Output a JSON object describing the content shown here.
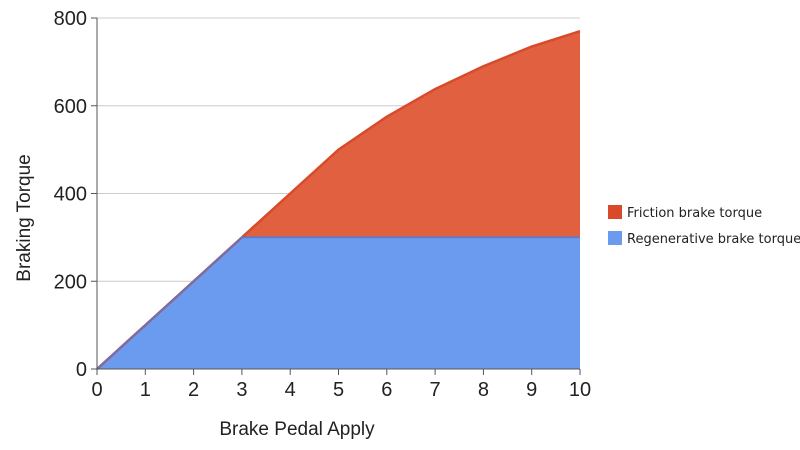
{
  "chart_data": {
    "type": "area",
    "stacked": true,
    "x": [
      0,
      1,
      2,
      3,
      4,
      5,
      6,
      7,
      8,
      9,
      10
    ],
    "series": [
      {
        "name": "Regenerative brake torque",
        "color": "#6a9bef",
        "values": [
          0,
          100,
          200,
          300,
          300,
          300,
          300,
          300,
          300,
          300,
          300
        ]
      },
      {
        "name": "Friction brake torque",
        "color": "#e06040",
        "values": [
          0,
          0,
          0,
          0,
          100,
          200,
          275,
          338,
          390,
          435,
          470
        ]
      }
    ],
    "title": "",
    "xlabel": "Brake Pedal Apply",
    "ylabel": "Braking Torque",
    "xlim": [
      0,
      10
    ],
    "ylim": [
      0,
      800
    ],
    "xticks": [
      "0",
      "1",
      "2",
      "3",
      "4",
      "5",
      "6",
      "7",
      "8",
      "9",
      "10"
    ],
    "yticks": [
      "0",
      "200",
      "400",
      "600",
      "800"
    ],
    "grid": true,
    "legend_position": "right",
    "legend_order": [
      "Friction brake torque",
      "Regenerative brake torque"
    ],
    "line_color": "#d84a2a"
  }
}
